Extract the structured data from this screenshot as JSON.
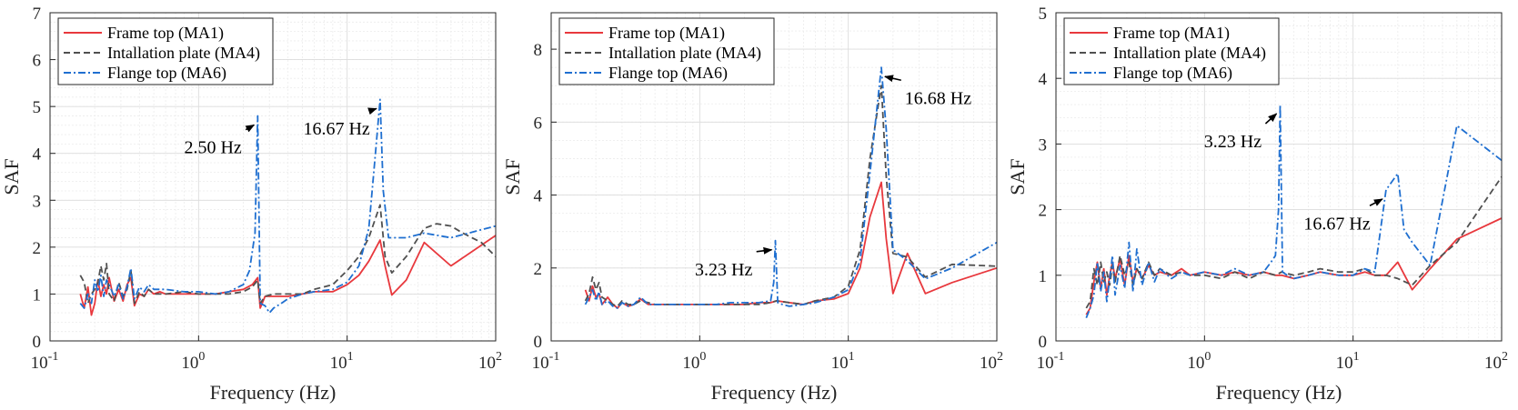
{
  "chart_data": [
    {
      "type": "line",
      "xscale": "log",
      "xlim": [
        0.1,
        100
      ],
      "ylim": [
        0,
        7
      ],
      "yticks": [
        0,
        1,
        2,
        3,
        4,
        5,
        6,
        7
      ],
      "xlabel": "Frequency (Hz)",
      "ylabel": "SAF",
      "grid": true,
      "legend": "top-left",
      "series": [
        {
          "name": "Frame top (MA1)",
          "color": "#e8383d",
          "dash": "solid",
          "x": [
            0.16,
            0.17,
            0.18,
            0.19,
            0.2,
            0.21,
            0.22,
            0.23,
            0.24,
            0.25,
            0.27,
            0.29,
            0.31,
            0.33,
            0.35,
            0.37,
            0.4,
            0.43,
            0.46,
            0.5,
            0.55,
            0.6,
            0.7,
            0.8,
            1.0,
            1.3,
            1.6,
            2.0,
            2.3,
            2.5,
            2.6,
            2.8,
            3.2,
            4.0,
            5.0,
            6.0,
            8.0,
            10.0,
            12.0,
            14.0,
            16.67,
            18.0,
            20.0,
            25.0,
            33.0,
            50.0,
            100.0
          ],
          "y": [
            1.0,
            0.7,
            1.15,
            0.55,
            0.8,
            1.3,
            0.95,
            1.2,
            1.0,
            1.35,
            0.85,
            1.1,
            0.85,
            1.2,
            1.35,
            0.75,
            1.0,
            0.95,
            1.1,
            1.0,
            1.05,
            1.0,
            1.0,
            1.0,
            1.0,
            1.0,
            1.05,
            1.1,
            1.2,
            1.35,
            0.7,
            0.95,
            0.95,
            0.95,
            1.0,
            1.05,
            1.05,
            1.2,
            1.4,
            1.7,
            2.15,
            1.6,
            0.98,
            1.3,
            2.1,
            1.6,
            2.25
          ]
        },
        {
          "name": "Intallation plate (MA4)",
          "color": "#505050",
          "dash": "dashed",
          "x": [
            0.16,
            0.17,
            0.18,
            0.19,
            0.2,
            0.21,
            0.22,
            0.23,
            0.24,
            0.25,
            0.27,
            0.29,
            0.31,
            0.33,
            0.35,
            0.37,
            0.4,
            0.43,
            0.46,
            0.5,
            0.6,
            0.8,
            1.0,
            1.3,
            1.6,
            2.0,
            2.3,
            2.5,
            2.6,
            2.8,
            3.2,
            4.0,
            5.0,
            6.0,
            8.0,
            10.0,
            12.0,
            14.0,
            16.67,
            18.0,
            20.0,
            25.0,
            33.0,
            40.0,
            50.0,
            60.0,
            80.0,
            100.0
          ],
          "y": [
            1.4,
            1.25,
            0.8,
            1.0,
            1.1,
            1.25,
            1.6,
            1.3,
            1.65,
            1.0,
            0.85,
            1.25,
            0.95,
            1.1,
            1.5,
            0.8,
            1.05,
            0.95,
            1.1,
            1.0,
            1.0,
            1.05,
            1.0,
            1.0,
            1.0,
            1.05,
            1.15,
            1.3,
            0.8,
            0.95,
            1.0,
            1.0,
            1.0,
            1.1,
            1.2,
            1.5,
            1.8,
            2.2,
            2.9,
            1.8,
            1.45,
            1.8,
            2.4,
            2.5,
            2.45,
            2.3,
            2.1,
            1.8
          ]
        },
        {
          "name": "Flange top (MA6)",
          "color": "#1f6fd0",
          "dash": "dashdot",
          "x": [
            0.16,
            0.17,
            0.18,
            0.19,
            0.2,
            0.21,
            0.22,
            0.23,
            0.24,
            0.25,
            0.27,
            0.29,
            0.31,
            0.33,
            0.35,
            0.37,
            0.4,
            0.43,
            0.46,
            0.5,
            0.6,
            0.8,
            1.0,
            1.3,
            1.6,
            2.0,
            2.2,
            2.4,
            2.5,
            2.6,
            2.8,
            3.0,
            3.2,
            3.6,
            4.0,
            5.0,
            6.0,
            8.0,
            10.0,
            12.0,
            14.0,
            15.5,
            16.67,
            17.5,
            19.0,
            22.0,
            25.0,
            33.0,
            50.0,
            100.0
          ],
          "y": [
            0.8,
            0.7,
            1.0,
            0.8,
            1.3,
            1.05,
            1.4,
            0.95,
            1.3,
            1.2,
            0.95,
            1.2,
            0.9,
            1.15,
            1.55,
            0.9,
            1.15,
            1.05,
            1.2,
            1.1,
            1.1,
            1.05,
            1.05,
            1.0,
            1.05,
            1.2,
            1.5,
            2.3,
            4.8,
            0.8,
            0.75,
            0.6,
            0.7,
            0.8,
            0.9,
            1.0,
            1.05,
            1.1,
            1.25,
            1.6,
            2.4,
            4.0,
            5.15,
            3.2,
            2.2,
            2.2,
            2.2,
            2.3,
            2.2,
            2.45
          ]
        }
      ],
      "annotations": [
        {
          "text": "2.50 Hz",
          "x": 2.5,
          "y": 4.8,
          "tx": 1.25,
          "ty": 4.0
        },
        {
          "text": "16.67 Hz",
          "x": 16.67,
          "y": 5.15,
          "tx": 8.5,
          "ty": 4.4
        }
      ]
    },
    {
      "type": "line",
      "xscale": "log",
      "xlim": [
        0.1,
        100
      ],
      "ylim": [
        0,
        9
      ],
      "yticks": [
        0,
        2,
        4,
        6,
        8
      ],
      "xlabel": "Frequency (Hz)",
      "ylabel": "SAF",
      "grid": true,
      "legend": "top-left",
      "series": [
        {
          "name": "Frame top (MA1)",
          "color": "#e8383d",
          "dash": "solid",
          "x": [
            0.17,
            0.18,
            0.19,
            0.2,
            0.21,
            0.22,
            0.24,
            0.26,
            0.28,
            0.3,
            0.33,
            0.36,
            0.4,
            0.45,
            0.5,
            0.6,
            0.8,
            1.0,
            1.3,
            1.6,
            2.0,
            2.5,
            3.0,
            3.3,
            4.0,
            5.0,
            6.0,
            8.0,
            10.0,
            12.0,
            14.0,
            16.68,
            18.0,
            20.0,
            25.0,
            33.0,
            50.0,
            100.0
          ],
          "y": [
            1.4,
            1.1,
            1.5,
            1.2,
            1.3,
            1.0,
            1.2,
            1.0,
            0.9,
            1.05,
            0.95,
            1.0,
            1.15,
            1.0,
            1.0,
            1.0,
            1.0,
            1.0,
            1.0,
            1.0,
            1.0,
            1.05,
            1.05,
            1.1,
            1.05,
            1.0,
            1.1,
            1.15,
            1.3,
            2.0,
            3.4,
            4.35,
            2.8,
            1.3,
            2.4,
            1.3,
            1.6,
            2.0
          ]
        },
        {
          "name": "Intallation plate (MA4)",
          "color": "#505050",
          "dash": "dashed",
          "x": [
            0.17,
            0.18,
            0.19,
            0.2,
            0.21,
            0.22,
            0.24,
            0.26,
            0.28,
            0.3,
            0.33,
            0.36,
            0.4,
            0.45,
            0.5,
            0.6,
            0.8,
            1.0,
            1.3,
            1.6,
            2.0,
            2.5,
            3.0,
            3.3,
            4.0,
            5.0,
            6.0,
            8.0,
            10.0,
            12.0,
            14.0,
            16.68,
            18.0,
            20.0,
            25.0,
            33.0,
            50.0,
            100.0
          ],
          "y": [
            1.1,
            1.3,
            1.75,
            1.4,
            1.6,
            1.2,
            1.1,
            1.0,
            0.95,
            1.1,
            1.0,
            1.0,
            1.1,
            1.05,
            1.0,
            1.0,
            1.0,
            1.0,
            1.0,
            1.0,
            1.0,
            1.0,
            1.05,
            1.1,
            1.05,
            1.0,
            1.1,
            1.2,
            1.5,
            2.5,
            5.0,
            7.0,
            4.5,
            2.4,
            2.3,
            1.75,
            2.1,
            2.05
          ]
        },
        {
          "name": "Flange top (MA6)",
          "color": "#1f6fd0",
          "dash": "dashdot",
          "x": [
            0.17,
            0.18,
            0.19,
            0.2,
            0.21,
            0.22,
            0.24,
            0.26,
            0.28,
            0.3,
            0.33,
            0.36,
            0.4,
            0.45,
            0.5,
            0.6,
            0.8,
            1.0,
            1.3,
            1.6,
            2.0,
            2.5,
            3.0,
            3.15,
            3.23,
            3.35,
            3.6,
            4.0,
            5.0,
            6.0,
            8.0,
            10.0,
            12.0,
            14.0,
            16.68,
            18.0,
            20.0,
            25.0,
            33.0,
            50.0,
            100.0
          ],
          "y": [
            1.0,
            1.2,
            1.4,
            1.1,
            1.35,
            1.0,
            1.1,
            0.95,
            0.9,
            1.05,
            0.95,
            1.0,
            1.2,
            1.0,
            1.0,
            1.0,
            1.0,
            1.0,
            1.0,
            1.05,
            1.05,
            1.05,
            1.1,
            1.6,
            2.75,
            1.05,
            1.0,
            0.95,
            1.0,
            1.05,
            1.2,
            1.4,
            2.2,
            4.6,
            7.5,
            5.8,
            2.5,
            2.2,
            1.7,
            2.0,
            2.7
          ]
        }
      ],
      "annotations": [
        {
          "text": "3.23 Hz",
          "x": 3.23,
          "y": 2.75,
          "tx": 1.45,
          "ty": 1.8
        },
        {
          "text": "16.68 Hz",
          "x": 16.68,
          "y": 7.5,
          "tx": 24.0,
          "ty": 6.5
        }
      ]
    },
    {
      "type": "line",
      "xscale": "log",
      "xlim": [
        0.1,
        100
      ],
      "ylim": [
        0,
        5
      ],
      "yticks": [
        0,
        1,
        2,
        3,
        4,
        5
      ],
      "xlabel": "Frequency (Hz)",
      "ylabel": "SAF",
      "grid": true,
      "legend": "top-left",
      "series": [
        {
          "name": "Frame top (MA1)",
          "color": "#e8383d",
          "dash": "solid",
          "x": [
            0.16,
            0.17,
            0.18,
            0.19,
            0.2,
            0.21,
            0.22,
            0.23,
            0.24,
            0.25,
            0.27,
            0.29,
            0.31,
            0.33,
            0.35,
            0.38,
            0.42,
            0.46,
            0.5,
            0.6,
            0.7,
            0.8,
            1.0,
            1.3,
            1.6,
            2.0,
            2.5,
            3.0,
            3.3,
            4.0,
            5.0,
            6.0,
            8.0,
            10.0,
            12.0,
            14.0,
            16.67,
            20.0,
            25.0,
            33.0,
            50.0,
            100.0
          ],
          "y": [
            0.4,
            0.5,
            0.9,
            1.2,
            0.8,
            1.1,
            0.7,
            1.0,
            1.2,
            0.95,
            1.25,
            0.85,
            1.3,
            0.9,
            1.1,
            0.95,
            1.15,
            1.0,
            1.05,
            1.0,
            1.1,
            1.0,
            1.05,
            1.0,
            1.05,
            1.0,
            1.05,
            1.0,
            1.0,
            0.95,
            1.0,
            1.05,
            1.0,
            1.0,
            1.05,
            1.0,
            1.0,
            1.2,
            0.78,
            1.1,
            1.55,
            1.87
          ]
        },
        {
          "name": "Intallation plate (MA4)",
          "color": "#505050",
          "dash": "dashed",
          "x": [
            0.16,
            0.17,
            0.18,
            0.19,
            0.2,
            0.21,
            0.22,
            0.23,
            0.24,
            0.25,
            0.27,
            0.29,
            0.31,
            0.33,
            0.35,
            0.38,
            0.42,
            0.46,
            0.5,
            0.6,
            0.7,
            0.8,
            1.0,
            1.3,
            1.6,
            2.0,
            2.5,
            3.0,
            3.3,
            4.0,
            5.0,
            6.0,
            8.0,
            10.0,
            12.0,
            14.0,
            16.67,
            20.0,
            25.0,
            33.0,
            50.0,
            100.0
          ],
          "y": [
            0.5,
            0.6,
            1.1,
            0.85,
            1.2,
            0.9,
            1.05,
            0.85,
            1.15,
            0.9,
            1.3,
            1.0,
            1.2,
            0.85,
            1.1,
            0.95,
            1.2,
            1.0,
            1.1,
            1.0,
            1.05,
            1.0,
            1.0,
            0.95,
            1.05,
            0.95,
            1.05,
            1.0,
            1.05,
            1.0,
            1.05,
            1.1,
            1.05,
            1.05,
            1.1,
            1.0,
            1.0,
            0.95,
            0.85,
            1.15,
            1.5,
            2.5
          ]
        },
        {
          "name": "Flange top (MA6)",
          "color": "#1f6fd0",
          "dash": "dashdot",
          "x": [
            0.16,
            0.17,
            0.18,
            0.19,
            0.2,
            0.21,
            0.22,
            0.23,
            0.24,
            0.25,
            0.27,
            0.29,
            0.31,
            0.33,
            0.35,
            0.38,
            0.42,
            0.46,
            0.5,
            0.6,
            0.7,
            0.8,
            1.0,
            1.3,
            1.6,
            2.0,
            2.5,
            2.8,
            3.0,
            3.15,
            3.23,
            3.35,
            3.6,
            4.0,
            5.0,
            6.0,
            8.0,
            10.0,
            12.0,
            14.0,
            16.67,
            20.0,
            22.0,
            25.0,
            33.0,
            50.0,
            100.0
          ],
          "y": [
            0.35,
            0.5,
            0.7,
            1.2,
            0.75,
            1.05,
            0.6,
            0.95,
            1.3,
            0.7,
            1.15,
            0.8,
            1.5,
            0.75,
            1.4,
            0.85,
            1.2,
            0.9,
            1.1,
            0.95,
            1.05,
            1.0,
            1.05,
            1.0,
            1.1,
            1.0,
            1.05,
            1.2,
            1.3,
            2.0,
            3.6,
            1.05,
            1.0,
            0.95,
            1.0,
            1.05,
            1.0,
            1.0,
            1.1,
            1.05,
            2.3,
            2.55,
            1.7,
            1.5,
            1.15,
            3.28,
            2.75
          ]
        }
      ],
      "annotations": [
        {
          "text": "3.23 Hz",
          "x": 3.23,
          "y": 3.6,
          "tx": 1.55,
          "ty": 2.95
        },
        {
          "text": "16.67 Hz",
          "x": 16.67,
          "y": 2.3,
          "tx": 7.8,
          "ty": 1.7
        }
      ]
    }
  ]
}
